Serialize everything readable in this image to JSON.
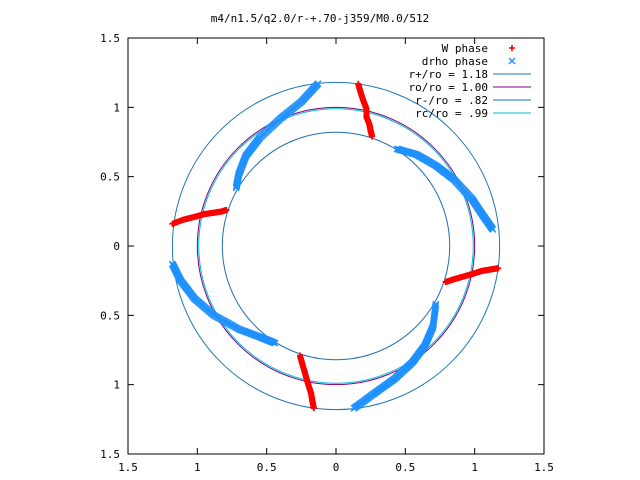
{
  "chart_data": {
    "type": "scatter",
    "title": "m4/n1.5/q2.0/r-+.70-j359/M0.0/512",
    "xlabel": "",
    "ylabel": "",
    "xlim": [
      -1.5,
      1.5
    ],
    "ylim": [
      -1.5,
      1.5
    ],
    "x_ticks": [
      "1.5",
      "1",
      "0.5",
      "0",
      "0.5",
      "1",
      "1.5"
    ],
    "y_ticks": [
      "1.5",
      "1",
      "0.5",
      "0",
      "0.5",
      "1",
      "1.5"
    ],
    "grid": false,
    "legend_position": "top-right",
    "series": [
      {
        "name": "W phase",
        "style": "points",
        "marker": "plus",
        "color": "#ff0000",
        "segments": [
          [
            [
              0.16,
              1.17
            ],
            [
              0.18,
              1.1
            ],
            [
              0.2,
              1.04
            ],
            [
              0.22,
              0.99
            ],
            [
              0.22,
              0.93
            ],
            [
              0.24,
              0.88
            ],
            [
              0.25,
              0.83
            ],
            [
              0.26,
              0.79
            ]
          ],
          [
            [
              -1.18,
              0.16
            ],
            [
              -1.1,
              0.19
            ],
            [
              -1.02,
              0.21
            ],
            [
              -0.95,
              0.23
            ],
            [
              -0.88,
              0.24
            ],
            [
              -0.82,
              0.25
            ],
            [
              -0.79,
              0.26
            ]
          ],
          [
            [
              0.79,
              -0.26
            ],
            [
              0.85,
              -0.24
            ],
            [
              0.92,
              -0.22
            ],
            [
              0.99,
              -0.2
            ],
            [
              1.05,
              -0.18
            ],
            [
              1.11,
              -0.17
            ],
            [
              1.17,
              -0.16
            ]
          ],
          [
            [
              -0.26,
              -0.79
            ],
            [
              -0.24,
              -0.86
            ],
            [
              -0.22,
              -0.93
            ],
            [
              -0.2,
              -1.0
            ],
            [
              -0.18,
              -1.06
            ],
            [
              -0.17,
              -1.12
            ],
            [
              -0.16,
              -1.17
            ]
          ]
        ]
      },
      {
        "name": "drho phase",
        "style": "points",
        "marker": "cross",
        "color": "#1e90ff",
        "segments": [
          [
            [
              -0.72,
              0.42
            ],
            [
              -0.7,
              0.52
            ],
            [
              -0.65,
              0.65
            ],
            [
              -0.55,
              0.78
            ],
            [
              -0.4,
              0.92
            ],
            [
              -0.25,
              1.04
            ],
            [
              -0.13,
              1.17
            ]
          ],
          [
            [
              0.44,
              0.7
            ],
            [
              0.58,
              0.66
            ],
            [
              0.72,
              0.58
            ],
            [
              0.85,
              0.48
            ],
            [
              0.98,
              0.34
            ],
            [
              1.06,
              0.22
            ],
            [
              1.13,
              0.12
            ]
          ],
          [
            [
              -1.18,
              -0.13
            ],
            [
              -1.12,
              -0.25
            ],
            [
              -1.02,
              -0.38
            ],
            [
              -0.88,
              -0.5
            ],
            [
              -0.7,
              -0.6
            ],
            [
              -0.54,
              -0.66
            ],
            [
              -0.44,
              -0.7
            ]
          ],
          [
            [
              0.13,
              -1.17
            ],
            [
              0.28,
              -1.06
            ],
            [
              0.42,
              -0.96
            ],
            [
              0.55,
              -0.84
            ],
            [
              0.64,
              -0.72
            ],
            [
              0.7,
              -0.58
            ],
            [
              0.72,
              -0.42
            ]
          ]
        ]
      },
      {
        "name": "r+/ro = 1.18",
        "style": "circle",
        "radius": 1.18,
        "color": "#1f77b4"
      },
      {
        "name": "ro/ro = 1.00",
        "style": "circle",
        "radius": 1.0,
        "color": "#800080"
      },
      {
        "name": "r-/ro = .82",
        "style": "circle",
        "radius": 0.82,
        "color": "#1e6fb0"
      },
      {
        "name": "rc/ro = .99",
        "style": "circle",
        "radius": 0.99,
        "color": "#00bcd4"
      }
    ]
  }
}
